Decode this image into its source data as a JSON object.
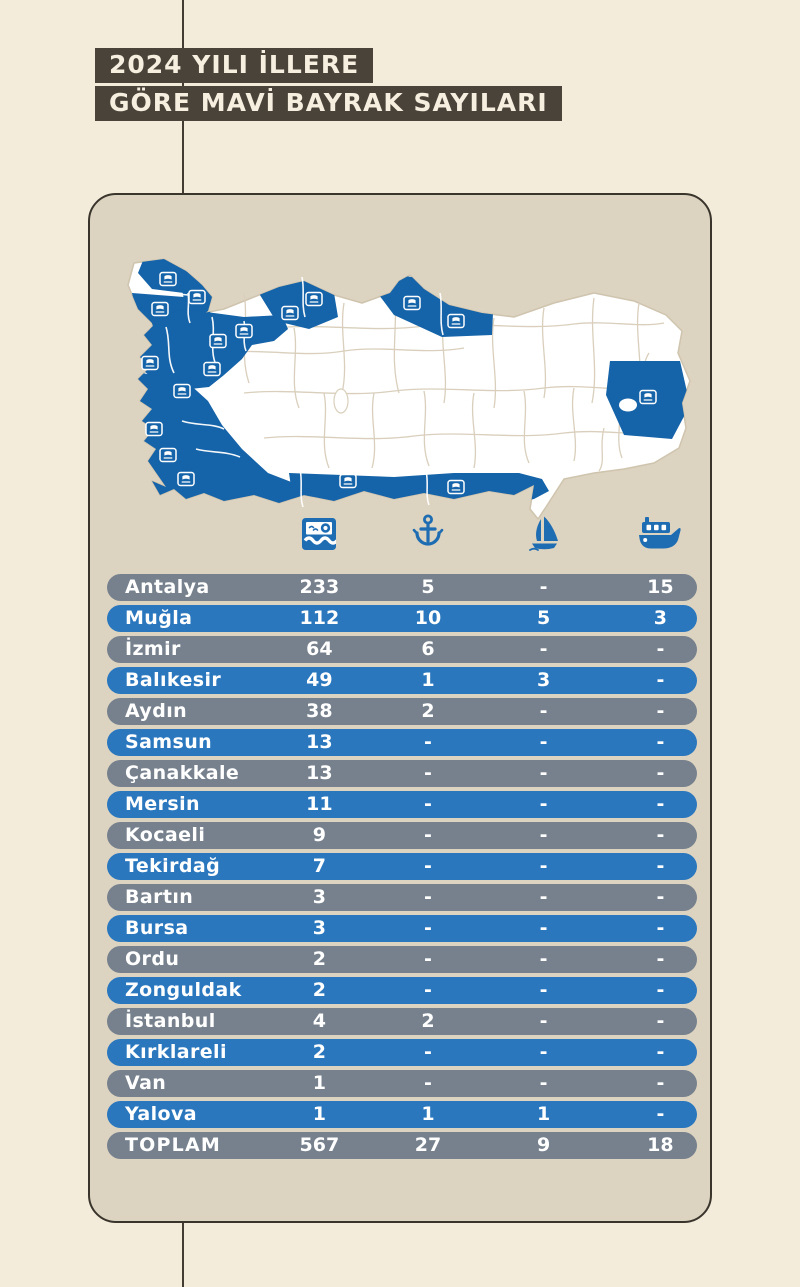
{
  "title": {
    "line1": "2024 YILI İLLERE",
    "line2": "GÖRE MAVİ BAYRAK SAYILARI"
  },
  "columns": [
    {
      "icon": "beach-icon"
    },
    {
      "icon": "anchor-icon"
    },
    {
      "icon": "sailboat-icon"
    },
    {
      "icon": "boat-icon"
    }
  ],
  "map": {
    "flag_icon": "flag-icon",
    "flagged_provinces": [
      "Kırklareli",
      "Tekirdağ",
      "İstanbul",
      "Kocaeli",
      "Yalova",
      "Bursa",
      "Çanakkale",
      "Balıkesir",
      "İzmir",
      "Aydın",
      "Muğla",
      "Antalya",
      "Mersin",
      "Zonguldak",
      "Bartın",
      "Samsun",
      "Ordu",
      "Van"
    ]
  },
  "chart_data": {
    "type": "table",
    "title": "2024 YILI İLLERE GÖRE MAVİ BAYRAK SAYILARI",
    "columns": [
      "province",
      "beach",
      "marina",
      "sailboat",
      "boat"
    ],
    "rows": [
      {
        "province": "Antalya",
        "beach": "233",
        "marina": "5",
        "sailboat": "-",
        "boat": "15"
      },
      {
        "province": "Muğla",
        "beach": "112",
        "marina": "10",
        "sailboat": "5",
        "boat": "3"
      },
      {
        "province": "İzmir",
        "beach": "64",
        "marina": "6",
        "sailboat": "-",
        "boat": "-"
      },
      {
        "province": "Balıkesir",
        "beach": "49",
        "marina": "1",
        "sailboat": "3",
        "boat": "-"
      },
      {
        "province": "Aydın",
        "beach": "38",
        "marina": "2",
        "sailboat": "-",
        "boat": "-"
      },
      {
        "province": "Samsun",
        "beach": "13",
        "marina": "-",
        "sailboat": "-",
        "boat": "-"
      },
      {
        "province": "Çanakkale",
        "beach": "13",
        "marina": "-",
        "sailboat": "-",
        "boat": "-"
      },
      {
        "province": "Mersin",
        "beach": "11",
        "marina": "-",
        "sailboat": "-",
        "boat": "-"
      },
      {
        "province": "Kocaeli",
        "beach": "9",
        "marina": "-",
        "sailboat": "-",
        "boat": "-"
      },
      {
        "province": "Tekirdağ",
        "beach": "7",
        "marina": "-",
        "sailboat": "-",
        "boat": "-"
      },
      {
        "province": "Bartın",
        "beach": "3",
        "marina": "-",
        "sailboat": "-",
        "boat": "-"
      },
      {
        "province": "Bursa",
        "beach": "3",
        "marina": "-",
        "sailboat": "-",
        "boat": "-"
      },
      {
        "province": "Ordu",
        "beach": "2",
        "marina": "-",
        "sailboat": "-",
        "boat": "-"
      },
      {
        "province": "Zonguldak",
        "beach": "2",
        "marina": "-",
        "sailboat": "-",
        "boat": "-"
      },
      {
        "province": "İstanbul",
        "beach": "4",
        "marina": "2",
        "sailboat": "-",
        "boat": "-"
      },
      {
        "province": "Kırklareli",
        "beach": "2",
        "marina": "-",
        "sailboat": "-",
        "boat": "-"
      },
      {
        "province": "Van",
        "beach": "1",
        "marina": "-",
        "sailboat": "-",
        "boat": "-"
      },
      {
        "province": "Yalova",
        "beach": "1",
        "marina": "1",
        "sailboat": "1",
        "boat": "-"
      }
    ],
    "total_row": {
      "province": "TOPLAM",
      "beach": "567",
      "marina": "27",
      "sailboat": "9",
      "boat": "18"
    }
  },
  "colors": {
    "page_bg": "#f4ecdb",
    "card_bg": "#dcd3c0",
    "title_bg": "#4a4339",
    "title_fg": "#f6efe0",
    "row_gray": "#76818d",
    "row_blue": "#2a77be",
    "map_blue": "#1563a8",
    "icon_blue": "#1e6cb2"
  }
}
